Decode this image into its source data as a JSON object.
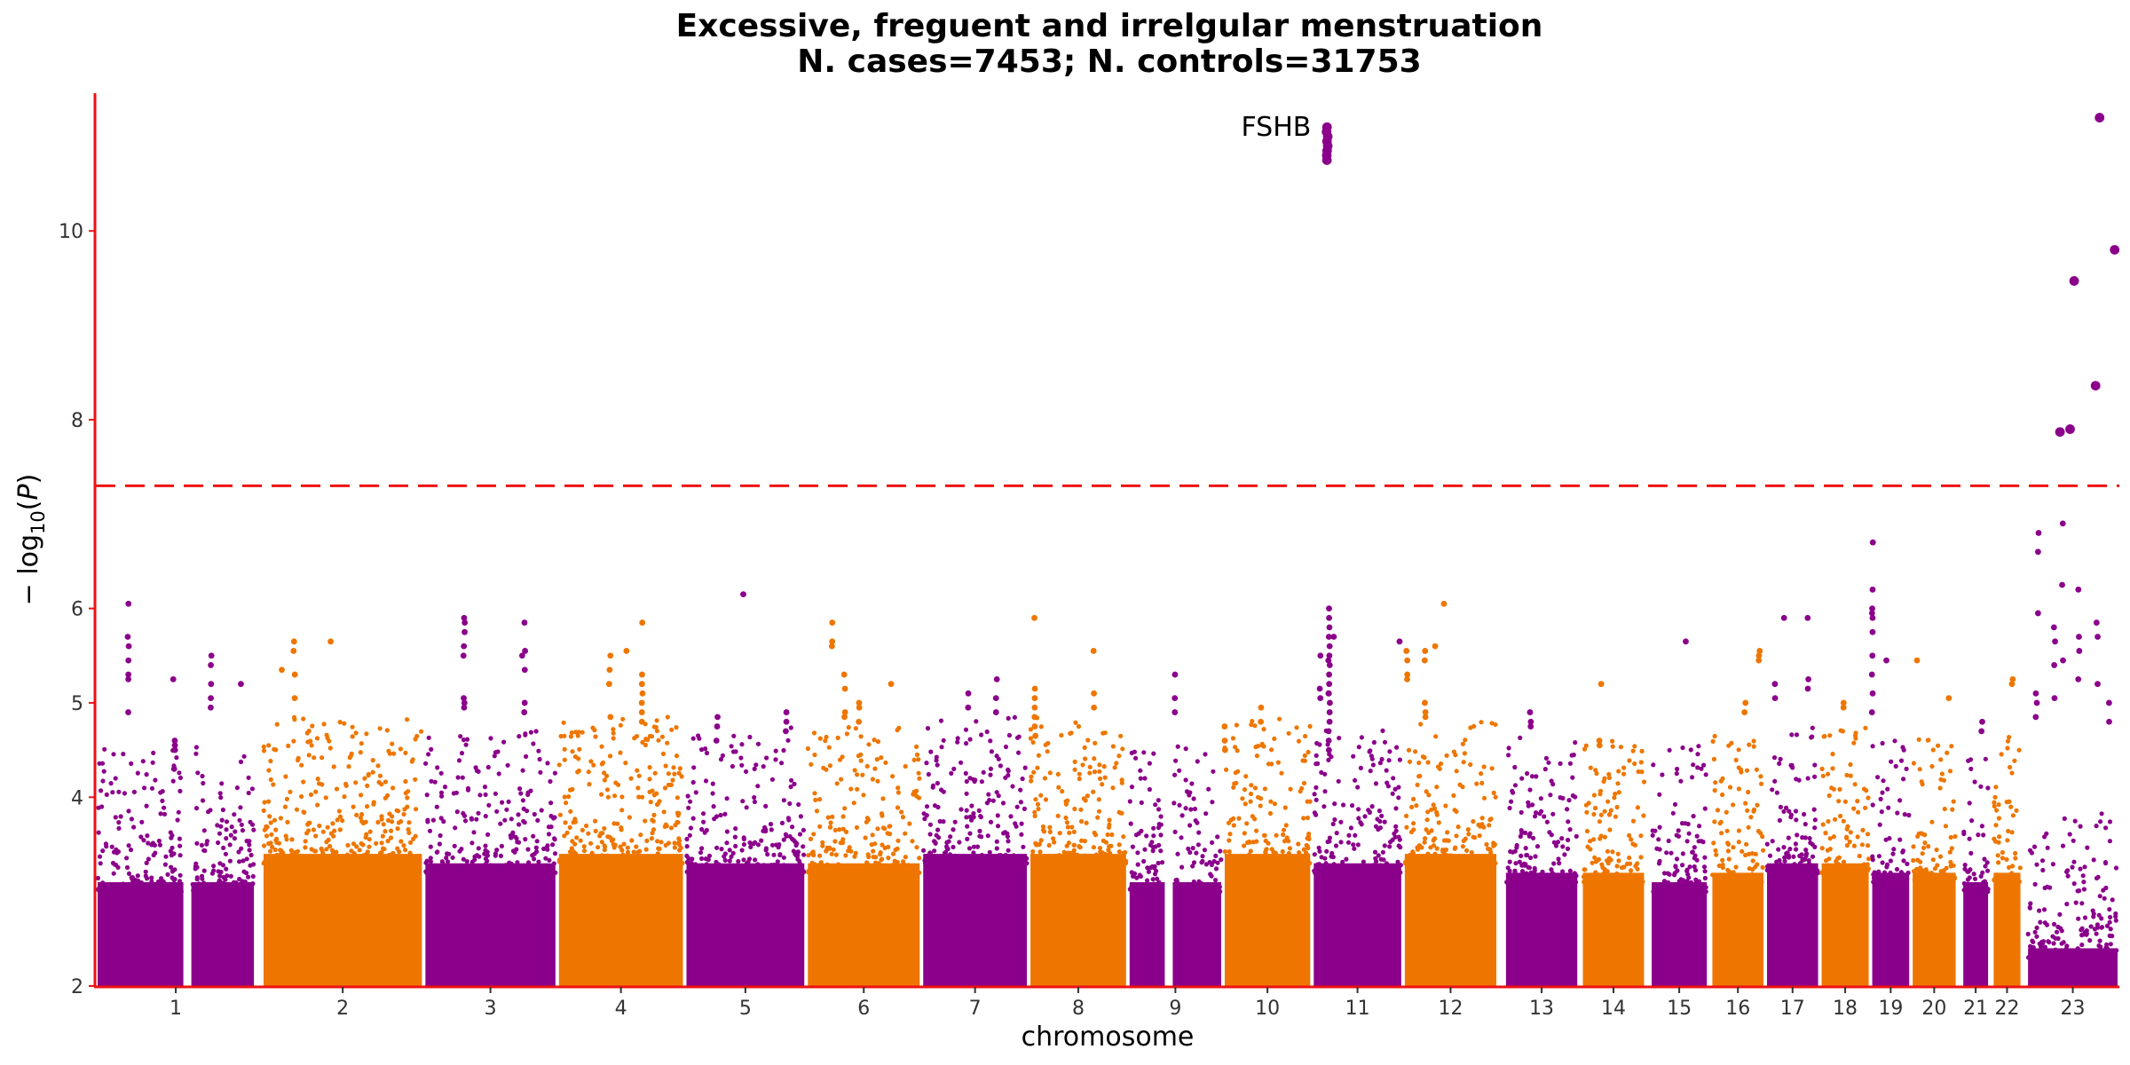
{
  "chart_data": {
    "type": "scatter",
    "title": "Excessive, freguent and irrelgular menstruation",
    "subtitle": "N. cases=7453; N. controls=31753",
    "xlabel": "chromosome",
    "ylabel": "− log10(P)",
    "ylabel_parts": {
      "prefix": "− log",
      "sub": "10",
      "open": "(",
      "var": "P",
      "close": ")"
    },
    "ylim": [
      2,
      11.45
    ],
    "yticks": [
      2,
      4,
      5,
      6,
      8,
      10
    ],
    "significance_threshold": 7.3,
    "grid": false,
    "legend": "none",
    "colors": {
      "odd": "#8b008b",
      "even": "#ee7600",
      "threshold": "#ee1111",
      "axis": "#ee1111"
    },
    "chromosomes": [
      {
        "label": "1",
        "start": 0.0,
        "end": 0.079,
        "base_top": 3.6,
        "gap_at": 0.045
      },
      {
        "label": "2",
        "start": 0.082,
        "end": 0.162,
        "base_top": 3.9
      },
      {
        "label": "3",
        "start": 0.162,
        "end": 0.228,
        "base_top": 3.8
      },
      {
        "label": "4",
        "start": 0.228,
        "end": 0.291,
        "base_top": 3.9
      },
      {
        "label": "5",
        "start": 0.291,
        "end": 0.351,
        "base_top": 3.8
      },
      {
        "label": "6",
        "start": 0.351,
        "end": 0.408,
        "base_top": 3.8
      },
      {
        "label": "7",
        "start": 0.408,
        "end": 0.461,
        "base_top": 3.9
      },
      {
        "label": "8",
        "start": 0.461,
        "end": 0.51,
        "base_top": 3.9
      },
      {
        "label": "9",
        "start": 0.51,
        "end": 0.557,
        "base_top": 3.6,
        "gap_at": 0.53
      },
      {
        "label": "10",
        "start": 0.557,
        "end": 0.601,
        "base_top": 3.9
      },
      {
        "label": "11",
        "start": 0.601,
        "end": 0.646,
        "base_top": 3.8
      },
      {
        "label": "12",
        "start": 0.646,
        "end": 0.693,
        "base_top": 3.9
      },
      {
        "label": "13",
        "start": 0.696,
        "end": 0.733,
        "base_top": 3.7
      },
      {
        "label": "14",
        "start": 0.734,
        "end": 0.766,
        "base_top": 3.7
      },
      {
        "label": "15",
        "start": 0.768,
        "end": 0.797,
        "base_top": 3.6
      },
      {
        "label": "16",
        "start": 0.798,
        "end": 0.825,
        "base_top": 3.7
      },
      {
        "label": "17",
        "start": 0.825,
        "end": 0.852,
        "base_top": 3.8
      },
      {
        "label": "18",
        "start": 0.852,
        "end": 0.877,
        "base_top": 3.8
      },
      {
        "label": "19",
        "start": 0.877,
        "end": 0.897,
        "base_top": 3.7
      },
      {
        "label": "20",
        "start": 0.897,
        "end": 0.92,
        "base_top": 3.7
      },
      {
        "label": "21",
        "start": 0.922,
        "end": 0.936,
        "base_top": 3.6
      },
      {
        "label": "22",
        "start": 0.937,
        "end": 0.952,
        "base_top": 3.7
      },
      {
        "label": "23",
        "start": 0.954,
        "end": 1.0,
        "base_top": 2.9
      }
    ],
    "peaks": [
      {
        "x": 0.016,
        "y": [
          6.05,
          5.7,
          5.6,
          5.45,
          5.3,
          5.25,
          4.9
        ]
      },
      {
        "x": 0.039,
        "y": [
          4.6,
          4.55,
          4.5,
          4.3
        ]
      },
      {
        "x": 0.038,
        "y": [
          5.25
        ]
      },
      {
        "x": 0.057,
        "y": [
          5.5,
          5.4,
          5.2,
          5.05,
          4.95
        ]
      },
      {
        "x": 0.072,
        "y": [
          5.2
        ]
      },
      {
        "x": 0.092,
        "y": [
          5.35
        ]
      },
      {
        "x": 0.098,
        "y": [
          5.65,
          5.55,
          5.3,
          5.05
        ]
      },
      {
        "x": 0.116,
        "y": [
          5.65
        ]
      },
      {
        "x": 0.182,
        "y": [
          5.9,
          5.85,
          5.75,
          5.6,
          5.5,
          5.05,
          5.0,
          4.95
        ]
      },
      {
        "x": 0.212,
        "y": [
          5.55,
          5.35,
          5.85,
          5.0,
          4.9
        ]
      },
      {
        "x": 0.211,
        "y": [
          5.5
        ]
      },
      {
        "x": 0.254,
        "y": [
          5.35,
          5.5,
          5.2,
          4.85
        ]
      },
      {
        "x": 0.262,
        "y": [
          5.55
        ]
      },
      {
        "x": 0.27,
        "y": [
          5.85,
          5.3,
          5.2,
          5.1,
          5.0,
          4.9,
          4.8
        ]
      },
      {
        "x": 0.32,
        "y": [
          6.15
        ]
      },
      {
        "x": 0.307,
        "y": [
          4.85,
          4.75,
          4.6
        ]
      },
      {
        "x": 0.341,
        "y": [
          4.9,
          4.8,
          4.7
        ]
      },
      {
        "x": 0.364,
        "y": [
          5.65,
          5.6,
          5.85
        ]
      },
      {
        "x": 0.37,
        "y": [
          5.3,
          5.15,
          4.9,
          4.85
        ]
      },
      {
        "x": 0.377,
        "y": [
          5.0,
          4.95,
          4.8
        ]
      },
      {
        "x": 0.393,
        "y": [
          5.2
        ]
      },
      {
        "x": 0.431,
        "y": [
          5.1,
          4.95
        ]
      },
      {
        "x": 0.445,
        "y": [
          5.25,
          5.05,
          4.9
        ]
      },
      {
        "x": 0.464,
        "y": [
          5.9,
          5.15,
          5.05,
          4.95,
          4.85,
          4.75,
          4.65
        ]
      },
      {
        "x": 0.493,
        "y": [
          5.55,
          5.1,
          4.95
        ]
      },
      {
        "x": 0.533,
        "y": [
          5.3,
          5.05,
          4.9
        ]
      },
      {
        "x": 0.558,
        "y": [
          4.75,
          4.6,
          4.5
        ]
      },
      {
        "x": 0.576,
        "y": [
          4.95,
          4.8
        ]
      },
      {
        "x": 0.612,
        "y": [
          5.7
        ]
      },
      {
        "x": 0.605,
        "y": [
          5.05,
          5.5,
          5.15
        ]
      },
      {
        "x": 0.609,
        "y": [
          5.45,
          5.1
        ]
      },
      {
        "x": 0.6085,
        "y": [
          11.1,
          11.05,
          11.0,
          10.95,
          10.9,
          10.85,
          10.8,
          10.75
        ],
        "label": "FSHB",
        "big": true
      },
      {
        "x": 0.6095,
        "y": [
          6.0,
          5.9,
          5.8,
          5.7,
          5.6,
          5.5,
          5.4,
          5.3,
          5.2,
          5.1,
          5.0,
          4.9,
          4.8,
          4.7,
          4.6,
          4.5
        ]
      },
      {
        "x": 0.644,
        "y": [
          5.65
        ]
      },
      {
        "x": 0.648,
        "y": [
          5.55,
          5.45,
          5.3,
          5.25
        ]
      },
      {
        "x": 0.662,
        "y": [
          5.6
        ]
      },
      {
        "x": 0.666,
        "y": [
          6.05
        ]
      },
      {
        "x": 0.657,
        "y": [
          5.55,
          5.45,
          5.0,
          4.9,
          4.85
        ]
      },
      {
        "x": 0.709,
        "y": [
          4.9,
          4.8,
          4.75
        ]
      },
      {
        "x": 0.743,
        "y": [
          4.6,
          4.55
        ]
      },
      {
        "x": 0.744,
        "y": [
          5.2
        ]
      },
      {
        "x": 0.786,
        "y": [
          5.65
        ]
      },
      {
        "x": 0.815,
        "y": [
          5.0,
          4.9
        ]
      },
      {
        "x": 0.822,
        "y": [
          5.55,
          5.5,
          5.45
        ]
      },
      {
        "x": 0.83,
        "y": [
          5.2,
          5.05
        ]
      },
      {
        "x": 0.834,
        "y": [
          5.9
        ]
      },
      {
        "x": 0.846,
        "y": [
          5.9,
          5.25,
          5.15
        ]
      },
      {
        "x": 0.864,
        "y": [
          5.0,
          4.95
        ]
      },
      {
        "x": 0.878,
        "y": [
          6.7,
          6.2,
          6.0,
          5.95,
          5.9,
          5.75,
          5.5,
          5.3,
          5.1,
          4.9
        ]
      },
      {
        "x": 0.885,
        "y": [
          5.45
        ]
      },
      {
        "x": 0.9,
        "y": [
          5.45
        ]
      },
      {
        "x": 0.916,
        "y": [
          5.05
        ]
      },
      {
        "x": 0.932,
        "y": [
          4.8,
          4.7
        ]
      },
      {
        "x": 0.947,
        "y": [
          5.25,
          5.2
        ]
      },
      {
        "x": 0.96,
        "y": [
          6.8,
          6.6,
          5.95
        ]
      },
      {
        "x": 0.968,
        "y": [
          5.8,
          5.65,
          5.4,
          5.05
        ]
      },
      {
        "x": 0.972,
        "y": [
          6.9,
          6.25,
          5.45
        ]
      },
      {
        "x": 0.98,
        "y": [
          6.2,
          5.7,
          5.55,
          5.25
        ]
      },
      {
        "x": 0.989,
        "y": [
          5.85,
          5.7,
          5.2
        ]
      },
      {
        "x": 0.995,
        "y": [
          4.8,
          5.0
        ]
      },
      {
        "x": 0.959,
        "y": [
          5.1,
          5.0,
          4.85
        ]
      },
      {
        "x": 0.9705,
        "y": [
          7.87
        ],
        "big": true
      },
      {
        "x": 0.9755,
        "y": [
          7.9
        ],
        "big": true
      },
      {
        "x": 0.9775,
        "y": [
          9.47
        ],
        "big": true
      },
      {
        "x": 0.9885,
        "y": [
          8.36
        ],
        "big": true
      },
      {
        "x": 0.99,
        "y": [
          11.2
        ],
        "big": true
      },
      {
        "x": 0.998,
        "y": [
          9.8
        ],
        "big": true
      }
    ]
  }
}
